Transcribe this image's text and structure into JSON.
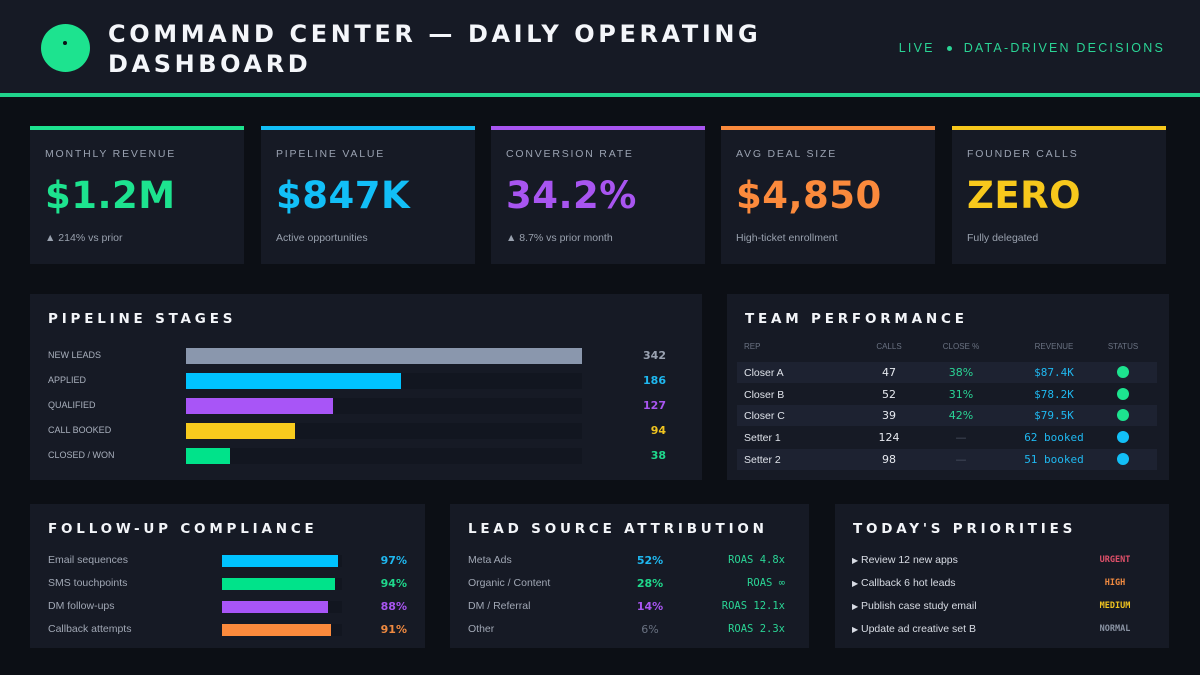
{
  "header": {
    "title": "COMMAND CENTER  —  DAILY OPERATING DASHBOARD",
    "tagline_left": "LIVE",
    "tagline_right": "DATA-DRIVEN DECISIONS",
    "accent": "#20d48c"
  },
  "kpis": [
    {
      "label": "MONTHLY REVENUE",
      "value": "$1.2M",
      "sub": "▲ 214% vs prior",
      "color": "#1de38f"
    },
    {
      "label": "PIPELINE VALUE",
      "value": "$847K",
      "sub": "Active opportunities",
      "color": "#12bff7"
    },
    {
      "label": "CONVERSION RATE",
      "value": "34.2%",
      "sub": "▲ 8.7% vs prior month",
      "color": "#a855f0"
    },
    {
      "label": "AVG DEAL SIZE",
      "value": "$4,850",
      "sub": "High-ticket enrollment",
      "color": "#fb8a3c"
    },
    {
      "label": "FOUNDER CALLS",
      "value": "ZERO",
      "sub": "Fully delegated",
      "color": "#f7c81c"
    }
  ],
  "pipeline": {
    "title": "PIPELINE STAGES",
    "max": 342,
    "stages": [
      {
        "label": "NEW LEADS",
        "value": 342,
        "display": "342",
        "color": "#8a97ad",
        "text_color": "#9aa2b1"
      },
      {
        "label": "APPLIED",
        "value": 186,
        "display": "186",
        "color": "#00c3ff",
        "text_color": "#1fb8f0"
      },
      {
        "label": "QUALIFIED",
        "value": 127,
        "display": "127",
        "color": "#a855f7",
        "text_color": "#a855f0"
      },
      {
        "label": "CALL BOOKED",
        "value": 94,
        "display": "94",
        "color": "#f8cb1d",
        "text_color": "#f0c420"
      },
      {
        "label": "CLOSED / WON",
        "value": 38,
        "display": "38",
        "color": "#00e38a",
        "text_color": "#1fd88c"
      }
    ]
  },
  "team": {
    "title": "TEAM PERFORMANCE",
    "columns": [
      "REP",
      "CALLS",
      "CLOSE %",
      "REVENUE",
      "STATUS"
    ],
    "rows": [
      {
        "rep": "Closer A",
        "calls": "47",
        "close": "38%",
        "revenue": "$87.4K",
        "status_color": "#1de38f"
      },
      {
        "rep": "Closer B",
        "calls": "52",
        "close": "31%",
        "revenue": "$78.2K",
        "status_color": "#1de38f"
      },
      {
        "rep": "Closer C",
        "calls": "39",
        "close": "42%",
        "revenue": "$79.5K",
        "status_color": "#1de38f"
      },
      {
        "rep": "Setter 1",
        "calls": "124",
        "close": "—",
        "revenue": "62 booked",
        "status_color": "#12bff7"
      },
      {
        "rep": "Setter 2",
        "calls": "98",
        "close": "—",
        "revenue": "51 booked",
        "status_color": "#12bff7"
      }
    ]
  },
  "compliance": {
    "title": "FOLLOW-UP COMPLIANCE",
    "items": [
      {
        "label": "Email sequences",
        "percent": 97,
        "display": "97%",
        "color": "#00c3ff",
        "text_color": "#1fb8f0"
      },
      {
        "label": "SMS touchpoints",
        "percent": 94,
        "display": "94%",
        "color": "#00e38a",
        "text_color": "#1fd88c"
      },
      {
        "label": "DM follow-ups",
        "percent": 88,
        "display": "88%",
        "color": "#a855f7",
        "text_color": "#a855f0"
      },
      {
        "label": "Callback attempts",
        "percent": 91,
        "display": "91%",
        "color": "#fb8a3c",
        "text_color": "#f08a40"
      }
    ]
  },
  "attribution": {
    "title": "LEAD SOURCE ATTRIBUTION",
    "items": [
      {
        "label": "Meta Ads",
        "share": "52%",
        "roas": "ROAS 4.8x",
        "color": "#1fb8f0"
      },
      {
        "label": "Organic / Content",
        "share": "28%",
        "roas": "ROAS ∞",
        "color": "#1fd88c"
      },
      {
        "label": "DM / Referral",
        "share": "14%",
        "roas": "ROAS 12.1x",
        "color": "#a855f0"
      },
      {
        "label": "Other",
        "share": "6%",
        "roas": "ROAS 2.3x",
        "color": "#6a7282"
      }
    ]
  },
  "priorities": {
    "title": "TODAY'S PRIORITIES",
    "items": [
      {
        "text": "Review 12 new apps",
        "level": "URGENT",
        "color": "#e0506a"
      },
      {
        "text": "Callback 6 hot leads",
        "level": "HIGH",
        "color": "#f08a40"
      },
      {
        "text": "Publish case study email",
        "level": "MEDIUM",
        "color": "#f0c420"
      },
      {
        "text": "Update ad creative set B",
        "level": "NORMAL",
        "color": "#8a93a3"
      }
    ]
  }
}
